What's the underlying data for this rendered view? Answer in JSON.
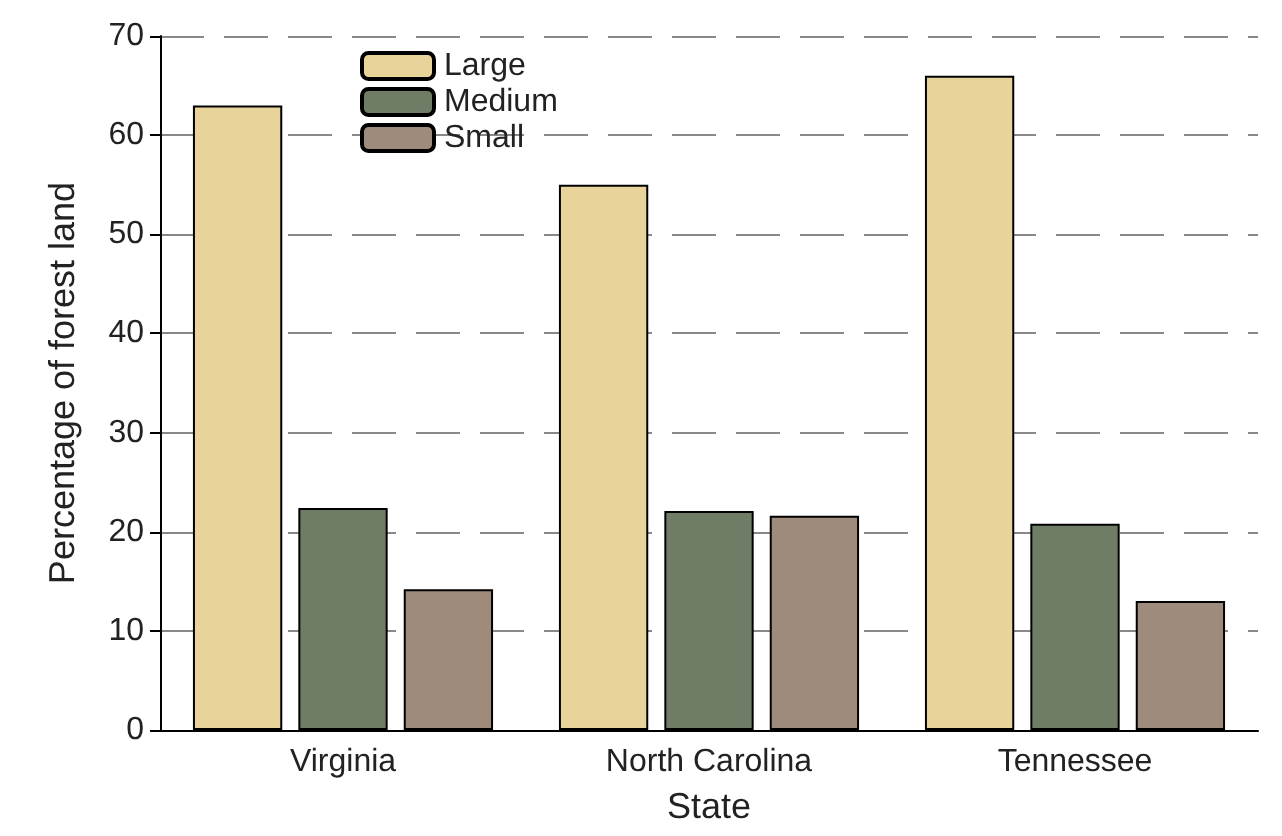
{
  "chart_data": {
    "type": "bar",
    "xlabel": "State",
    "ylabel": "Percentage of forest land",
    "categories": [
      "Virginia",
      "North Carolina",
      "Tennessee"
    ],
    "series": [
      {
        "name": "Large",
        "color": "#e8d49a",
        "values": [
          63,
          55,
          66
        ]
      },
      {
        "name": "Medium",
        "color": "#6f7d66",
        "values": [
          22.4,
          22.1,
          20.8
        ]
      },
      {
        "name": "Small",
        "color": "#9e8b7b",
        "values": [
          14.2,
          21.6,
          13
        ]
      }
    ],
    "ylim": [
      0,
      70
    ],
    "yticks": [
      0,
      10,
      20,
      30,
      40,
      50,
      60,
      70
    ],
    "grid": "y",
    "legend": "top left"
  }
}
